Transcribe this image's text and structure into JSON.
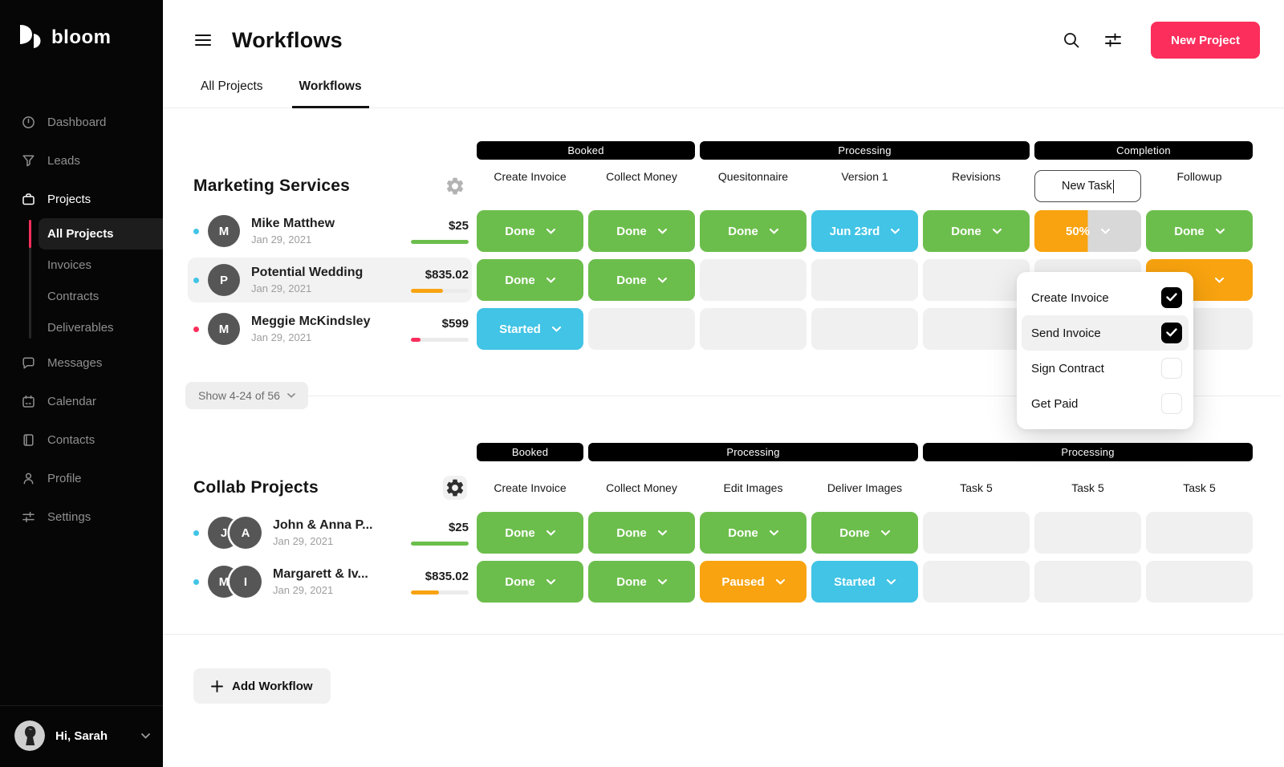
{
  "colors": {
    "accent": "#fb2e5c",
    "green": "#6cbe4c",
    "cyan": "#41c4e5",
    "orange": "#f8a30f"
  },
  "brand": {
    "name": "bloom"
  },
  "sidebar": {
    "items": [
      {
        "label": "Dashboard",
        "icon": "gauge"
      },
      {
        "label": "Leads",
        "icon": "funnel"
      },
      {
        "label": "Projects",
        "icon": "briefcase",
        "active_section": true,
        "sub": [
          {
            "label": "All Projects",
            "active": true
          },
          {
            "label": "Invoices"
          },
          {
            "label": "Contracts"
          },
          {
            "label": "Deliverables"
          }
        ]
      },
      {
        "label": "Messages",
        "icon": "chat"
      },
      {
        "label": "Calendar",
        "icon": "calendar"
      },
      {
        "label": "Contacts",
        "icon": "book"
      },
      {
        "label": "Profile",
        "icon": "person"
      },
      {
        "label": "Settings",
        "icon": "sliders"
      }
    ],
    "user": {
      "greeting": "Hi, Sarah"
    }
  },
  "header": {
    "title": "Workflows",
    "new_project_label": "New Project"
  },
  "tabs": [
    {
      "label": "All Projects",
      "active": false
    },
    {
      "label": "Workflows",
      "active": true
    }
  ],
  "sections": [
    {
      "title": "Marketing Services",
      "gear_style": "plain",
      "groups": [
        {
          "label": "Booked",
          "span": 2
        },
        {
          "label": "Processing",
          "span": 3
        },
        {
          "label": "Completion",
          "span": 2
        }
      ],
      "columns": [
        "Create Invoice",
        "Collect Money",
        "Quesitonnaire",
        "Version 1",
        "Revisions",
        "New Task",
        "Followup"
      ],
      "editing_column_index": 5,
      "handle_column_index": 4,
      "rows": [
        {
          "dot": "#41c4e5",
          "initials": [
            "M"
          ],
          "name": "Mike Matthew",
          "date": "Jan 29, 2021",
          "amount": "$25",
          "progress": {
            "color": "#6cbe4c",
            "pct": 100
          },
          "cells": [
            {
              "label": "Done",
              "style": "green"
            },
            {
              "label": "Done",
              "style": "green"
            },
            {
              "label": "Done",
              "style": "green"
            },
            {
              "label": "Jun 23rd",
              "style": "cyan"
            },
            {
              "label": "Done",
              "style": "green"
            },
            {
              "label": "50%",
              "style": "split"
            },
            {
              "label": "Done",
              "style": "green"
            }
          ]
        },
        {
          "dot": "#41c4e5",
          "initials": [
            "P"
          ],
          "name": "Potential Wedding",
          "date": "Jan 29, 2021",
          "amount": "$835.02",
          "progress": {
            "color": "#f8a30f",
            "pct": 55
          },
          "highlighted": true,
          "cells": [
            {
              "label": "Done",
              "style": "green"
            },
            {
              "label": "Done",
              "style": "green"
            },
            {
              "style": "empty"
            },
            {
              "style": "empty"
            },
            {
              "style": "empty"
            },
            {
              "style": "empty"
            },
            {
              "label": "",
              "style": "orange",
              "blank": true
            }
          ]
        },
        {
          "dot": "#fb2e5c",
          "initials": [
            "M"
          ],
          "name": "Meggie McKindsley",
          "date": "Jan 29, 2021",
          "amount": "$599",
          "progress": {
            "color": "#fb2e5c",
            "pct": 17
          },
          "cells": [
            {
              "label": "Started",
              "style": "cyan"
            },
            {
              "style": "empty"
            },
            {
              "style": "empty"
            },
            {
              "style": "empty"
            },
            {
              "style": "empty"
            },
            {
              "style": "empty"
            },
            {
              "style": "empty"
            }
          ]
        }
      ],
      "pagination_label": "Show 4-24 of 56"
    },
    {
      "title": "Collab Projects",
      "gear_style": "boxed",
      "groups": [
        {
          "label": "Booked",
          "span": 1
        },
        {
          "label": "Processing",
          "span": 3
        },
        {
          "label": "Processing",
          "span": 3
        }
      ],
      "columns": [
        "Create Invoice",
        "Collect Money",
        "Edit Images",
        "Deliver Images",
        "Task 5",
        "Task 5",
        "Task 5"
      ],
      "rows": [
        {
          "dot": "#41c4e5",
          "initials": [
            "J",
            "A"
          ],
          "name": "John & Anna P...",
          "date": "Jan 29, 2021",
          "amount": "$25",
          "progress": {
            "color": "#6cbe4c",
            "pct": 100
          },
          "cells": [
            {
              "label": "Done",
              "style": "green"
            },
            {
              "label": "Done",
              "style": "green"
            },
            {
              "label": "Done",
              "style": "green"
            },
            {
              "label": "Done",
              "style": "green"
            },
            {
              "style": "empty"
            },
            {
              "style": "empty"
            },
            {
              "style": "empty"
            }
          ]
        },
        {
          "dot": "#41c4e5",
          "initials": [
            "M",
            "I"
          ],
          "name": "Margarett & Iv...",
          "date": "Jan 29, 2021",
          "amount": "$835.02",
          "progress": {
            "color": "#f8a30f",
            "pct": 48
          },
          "cells": [
            {
              "label": "Done",
              "style": "green"
            },
            {
              "label": "Done",
              "style": "green"
            },
            {
              "label": "Paused",
              "style": "orange"
            },
            {
              "label": "Started",
              "style": "cyan"
            },
            {
              "style": "empty"
            },
            {
              "style": "empty"
            },
            {
              "style": "empty"
            }
          ]
        }
      ]
    }
  ],
  "dropdown": {
    "items": [
      {
        "label": "Create Invoice",
        "checked": true
      },
      {
        "label": "Send Invoice",
        "checked": true,
        "highlighted": true
      },
      {
        "label": "Sign Contract",
        "checked": false
      },
      {
        "label": "Get Paid",
        "checked": false
      }
    ]
  },
  "add_workflow_label": "Add Workflow"
}
